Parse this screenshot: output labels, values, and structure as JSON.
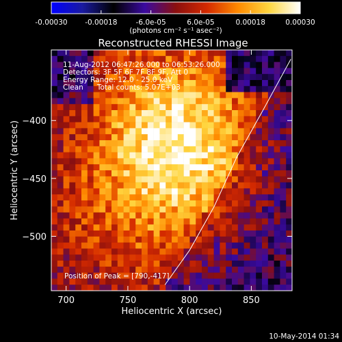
{
  "chart_data": {
    "type": "heatmap",
    "title": "Reconstructed RHESSI Image",
    "xlabel": "Heliocentric X (arcsec)",
    "ylabel": "Heliocentric Y (arcsec)",
    "xlim": [
      688,
      883
    ],
    "ylim": [
      -547,
      -339
    ],
    "xticks": [
      700,
      750,
      800,
      850
    ],
    "yticks": [
      -400,
      -450,
      -500
    ],
    "colorbar": {
      "range": [
        -0.0003,
        0.0003
      ],
      "ticks": [
        "-0.00030",
        "-0.00018",
        "-6.0e-05",
        "6.0e-05",
        "0.00018",
        "0.00030"
      ],
      "tick_values": [
        -0.0003,
        -0.00018,
        -6e-05,
        6e-05,
        0.00018,
        0.0003
      ],
      "unit_label": "(photons cm⁻² s⁻¹ asec⁻²)",
      "colormap": "blue-black-red-yellow-white"
    },
    "annotations": [
      "11-Aug-2012 06:47:26.000 to 06:53:26.000",
      "Detectors: 3F 5F 6F 7F 8F 9F, Att 0",
      "Energy Range: 12.0 - 25.0 keV",
      "Clean      Total counts: 5.07E+03"
    ],
    "peak_label": "Position of Peak = [790,-417]",
    "peak": [
      790,
      -417
    ],
    "limb_points": [
      [
        882,
        -347
      ],
      [
        860,
        -390
      ],
      [
        838,
        -432
      ],
      [
        820,
        -474
      ],
      [
        800,
        -512
      ],
      [
        780,
        -542
      ]
    ]
  },
  "footer": {
    "timestamp": "10-May-2014 01:34"
  },
  "colors": {
    "background": "#000000",
    "text": "#ffffff",
    "limb": "#ffffff",
    "colormap_stops": [
      "#0000ff",
      "#1a1aa0",
      "#000000",
      "#3a0aa0",
      "#8a0f0f",
      "#d42a00",
      "#ff8a00",
      "#ffd640",
      "#ffffff"
    ]
  }
}
